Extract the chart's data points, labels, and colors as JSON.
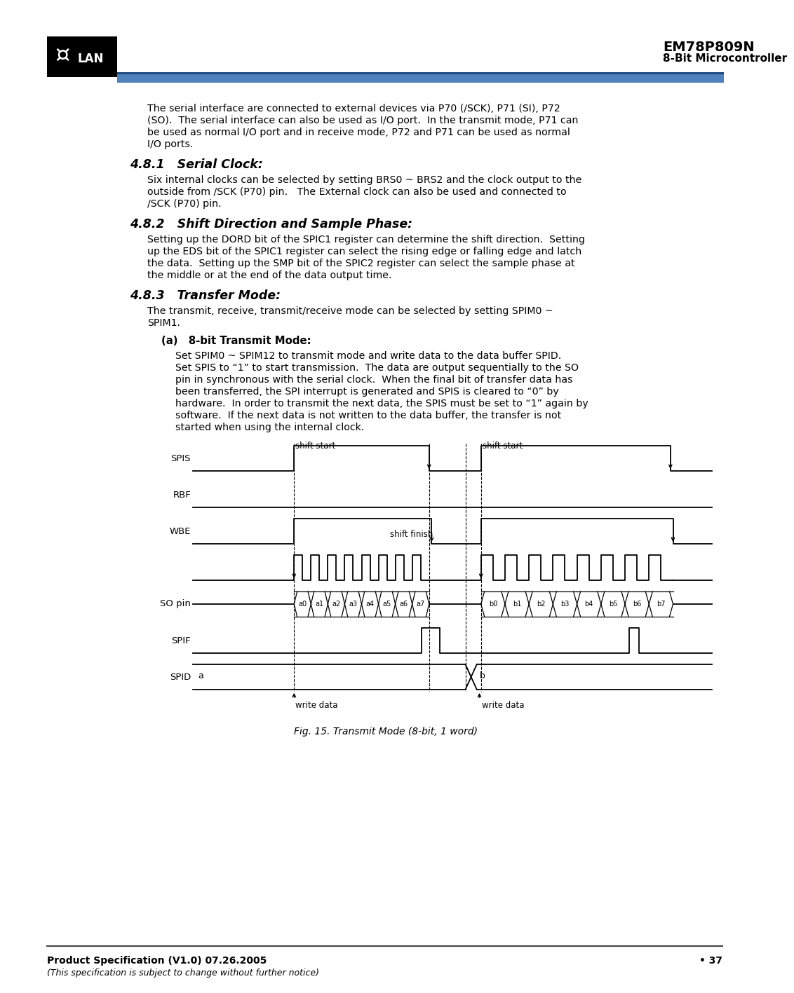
{
  "title": "EM78P809N",
  "subtitle": "8-Bit Microcontroller",
  "bg_color": "#ffffff",
  "body_text": [
    "The serial interface are connected to external devices via P70 (/SCK), P71 (SI), P72",
    "(SO).  The serial interface can also be used as I/O port.  In the transmit mode, P71 can",
    "be used as normal I/O port and in receive mode, P72 and P71 can be used as normal",
    "I/O ports."
  ],
  "section_481_title": "4.8.1   Serial Clock:",
  "section_481_text": [
    "Six internal clocks can be selected by setting BRS0 ~ BRS2 and the clock output to the",
    "outside from /SCK (P70) pin.   The External clock can also be used and connected to",
    "/SCK (P70) pin."
  ],
  "section_482_title": "4.8.2   Shift Direction and Sample Phase:",
  "section_482_text": [
    "Setting up the DORD bit of the SPIC1 register can determine the shift direction.  Setting",
    "up the EDS bit of the SPIC1 register can select the rising edge or falling edge and latch",
    "the data.  Setting up the SMP bit of the SPIC2 register can select the sample phase at",
    "the middle or at the end of the data output time."
  ],
  "section_483_title": "4.8.3   Transfer Mode:",
  "section_483_text": [
    "The transmit, receive, transmit/receive mode can be selected by setting SPIM0 ~",
    "SPIM1."
  ],
  "section_483a_title": "(a)   8-bit Transmit Mode:",
  "section_483a_text": [
    "Set SPIM0 ~ SPIM12 to transmit mode and write data to the data buffer SPID.",
    "Set SPIS to “1” to start transmission.  The data are output sequentially to the SO",
    "pin in synchronous with the serial clock.  When the final bit of transfer data has",
    "been transferred, the SPI interrupt is generated and SPIS is cleared to “0” by",
    "hardware.  In order to transmit the next data, the SPIS must be set to “1” again by",
    "software.  If the next data is not written to the data buffer, the transfer is not",
    "started when using the internal clock."
  ],
  "fig_caption": "Fig. 15. Transmit Mode (8-bit, 1 word)",
  "footer_left": "Product Specification (V1.0) 07.26.2005",
  "footer_right": "• 37",
  "footer_italic": "(This specification is subject to change without further notice)",
  "diag_dv1": 0.195,
  "diag_dv2": 0.455,
  "diag_dv3": 0.525,
  "diag_dv4": 0.555
}
